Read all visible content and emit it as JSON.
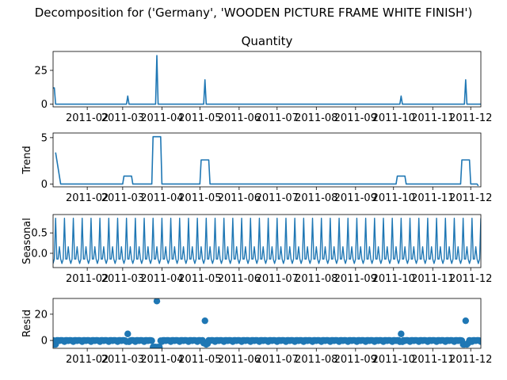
{
  "figure": {
    "suptitle": "Decomposition for ('Germany', 'WOODEN PICTURE FRAME WHITE FINISH')"
  },
  "chart_data": [
    {
      "type": "line",
      "title": "Quantity",
      "ylabel": "",
      "color": "#1f77b4",
      "x_range": [
        "2011-01-05",
        "2011-12-09"
      ],
      "ylim": [
        -2,
        39
      ],
      "yticks": [
        0,
        25
      ],
      "xticks": [
        "2011-02",
        "2011-03",
        "2011-04",
        "2011-05",
        "2011-06",
        "2011-07",
        "2011-08",
        "2011-09",
        "2011-10",
        "2011-11",
        "2011-12"
      ],
      "points": [
        [
          "2011-01-05",
          12
        ],
        [
          "2011-01-06",
          12
        ],
        [
          "2011-01-07",
          0
        ],
        [
          "2011-03-04",
          0
        ],
        [
          "2011-03-05",
          6
        ],
        [
          "2011-03-06",
          0
        ],
        [
          "2011-03-27",
          0
        ],
        [
          "2011-03-28",
          36
        ],
        [
          "2011-03-29",
          0
        ],
        [
          "2011-05-04",
          0
        ],
        [
          "2011-05-05",
          18
        ],
        [
          "2011-05-06",
          0
        ],
        [
          "2011-10-06",
          0
        ],
        [
          "2011-10-07",
          6
        ],
        [
          "2011-10-08",
          0
        ],
        [
          "2011-11-26",
          0
        ],
        [
          "2011-11-27",
          18
        ],
        [
          "2011-11-28",
          0
        ],
        [
          "2011-12-09",
          0
        ]
      ]
    },
    {
      "type": "line",
      "title": "",
      "ylabel": "Trend",
      "color": "#1f77b4",
      "x_range": [
        "2011-01-05",
        "2011-12-09"
      ],
      "ylim": [
        -0.3,
        5.5
      ],
      "yticks": [
        0,
        5
      ],
      "xticks": [
        "2011-02",
        "2011-03",
        "2011-04",
        "2011-05",
        "2011-06",
        "2011-07",
        "2011-08",
        "2011-09",
        "2011-10",
        "2011-11",
        "2011-12"
      ],
      "points": [
        [
          "2011-01-07",
          3.4
        ],
        [
          "2011-01-11",
          0
        ],
        [
          "2011-03-01",
          0
        ],
        [
          "2011-03-02",
          0.86
        ],
        [
          "2011-03-08",
          0.86
        ],
        [
          "2011-03-09",
          0
        ],
        [
          "2011-03-24",
          0
        ],
        [
          "2011-03-25",
          5.1
        ],
        [
          "2011-03-31",
          5.1
        ],
        [
          "2011-04-01",
          0
        ],
        [
          "2011-05-01",
          0
        ],
        [
          "2011-05-02",
          2.6
        ],
        [
          "2011-05-08",
          2.6
        ],
        [
          "2011-05-09",
          0
        ],
        [
          "2011-10-03",
          0
        ],
        [
          "2011-10-04",
          0.86
        ],
        [
          "2011-10-10",
          0.86
        ],
        [
          "2011-10-11",
          0
        ],
        [
          "2011-11-23",
          0
        ],
        [
          "2011-11-24",
          2.6
        ],
        [
          "2011-11-30",
          2.6
        ],
        [
          "2011-12-01",
          0
        ],
        [
          "2011-12-06",
          0
        ],
        [
          "2011-12-07",
          -0.2
        ]
      ]
    },
    {
      "type": "line",
      "title": "",
      "ylabel": "Seasonal",
      "color": "#1f77b4",
      "x_range": [
        "2011-01-05",
        "2011-12-09"
      ],
      "ylim": [
        -0.35,
        0.95
      ],
      "yticks": [
        0.0,
        0.5
      ],
      "xticks": [
        "2011-02",
        "2011-03",
        "2011-04",
        "2011-05",
        "2011-06",
        "2011-07",
        "2011-08",
        "2011-09",
        "2011-10",
        "2011-11",
        "2011-12"
      ],
      "period_days": 7,
      "start_date": "2011-01-05",
      "end_date": "2011-12-09",
      "weekly_pattern": [
        -0.25,
        -0.14,
        0.86,
        -0.14,
        -0.14,
        0.16,
        -0.14
      ]
    },
    {
      "type": "scatter",
      "title": "",
      "ylabel": "Resid",
      "color": "#1f77b4",
      "x_range": [
        "2011-01-05",
        "2011-12-09"
      ],
      "ylim": [
        -6,
        32
      ],
      "yticks": [
        0,
        20
      ],
      "xticks": [
        "2011-02",
        "2011-03",
        "2011-04",
        "2011-05",
        "2011-06",
        "2011-07",
        "2011-08",
        "2011-09",
        "2011-10",
        "2011-11",
        "2011-12"
      ],
      "start_date": "2011-01-05",
      "end_date": "2011-12-09",
      "baseline_pattern": [
        0.1,
        -0.2,
        -0.9,
        0.1,
        0.1,
        -0.2,
        0.1
      ],
      "special_points": [
        [
          "2011-01-06",
          -3
        ],
        [
          "2011-01-07",
          -3
        ],
        [
          "2011-03-05",
          5
        ],
        [
          "2011-03-06",
          -1
        ],
        [
          "2011-03-25",
          -5
        ],
        [
          "2011-03-26",
          -5
        ],
        [
          "2011-03-27",
          -5
        ],
        [
          "2011-03-28",
          30
        ],
        [
          "2011-03-29",
          -5
        ],
        [
          "2011-03-30",
          -5
        ],
        [
          "2011-05-04",
          -2
        ],
        [
          "2011-05-05",
          15
        ],
        [
          "2011-05-06",
          -3
        ],
        [
          "2011-05-07",
          -2.5
        ],
        [
          "2011-10-06",
          -1
        ],
        [
          "2011-10-07",
          5
        ],
        [
          "2011-10-08",
          -1
        ],
        [
          "2011-11-25",
          -3
        ],
        [
          "2011-11-26",
          -3
        ],
        [
          "2011-11-27",
          15
        ],
        [
          "2011-11-28",
          -3
        ],
        [
          "2011-11-29",
          -2
        ]
      ]
    }
  ]
}
